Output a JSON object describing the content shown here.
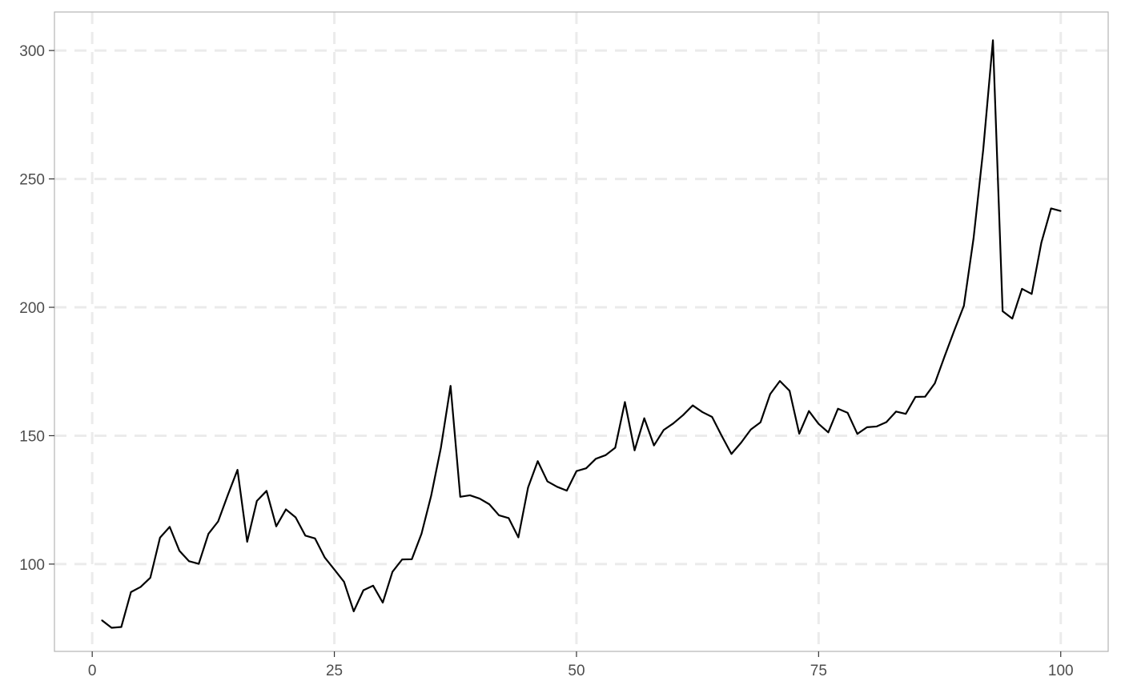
{
  "chart_data": {
    "type": "line",
    "title": "",
    "xlabel": "",
    "ylabel": "",
    "xlim": [
      -3.9,
      104.9
    ],
    "ylim": [
      66,
      315
    ],
    "x_ticks": [
      0,
      25,
      50,
      75,
      100
    ],
    "x_tick_labels": [
      "0",
      "25",
      "50",
      "75",
      "100"
    ],
    "y_ticks": [
      100,
      150,
      200,
      250,
      300
    ],
    "y_tick_labels": [
      "100",
      "150",
      "200",
      "250",
      "300"
    ],
    "grid": true,
    "grid_style": "dashed",
    "legend": "none",
    "colors": {
      "line": "#000000",
      "grid": "#ebebeb",
      "border": "#b3b3b3",
      "tick_text": "#4d4d4d",
      "tick_mark": "#333333",
      "background": "#ffffff"
    },
    "series": [
      {
        "x": [
          1,
          2,
          3,
          4,
          5,
          6,
          7,
          8,
          9,
          10,
          11,
          12,
          13,
          14,
          15,
          16,
          17,
          18,
          19,
          20,
          21,
          22,
          23,
          24,
          25,
          26,
          27,
          28,
          29,
          30,
          31,
          32,
          33,
          34,
          35,
          36,
          37,
          38,
          39,
          40,
          41,
          42,
          43,
          44,
          45,
          46,
          47,
          48,
          49,
          50,
          51,
          52,
          53,
          54,
          55,
          56,
          57,
          58,
          59,
          60,
          61,
          62,
          63,
          64,
          65,
          66,
          67,
          68,
          69,
          70,
          71,
          72,
          73,
          74,
          75,
          76,
          77,
          78,
          79,
          80,
          81,
          82,
          83,
          84,
          85,
          86,
          87,
          88,
          89,
          90,
          91,
          92,
          93,
          94,
          95,
          96,
          97,
          98,
          99,
          100
        ],
        "values": [
          78.1,
          75.2,
          75.5,
          89.1,
          91.1,
          94.7,
          110.3,
          114.5,
          105.2,
          101.1,
          100.1,
          111.8,
          116.6,
          126.9,
          136.7,
          108.7,
          124.6,
          128.5,
          114.7,
          121.3,
          118.2,
          111.1,
          110.0,
          102.6,
          97.9,
          93.1,
          81.6,
          89.8,
          91.6,
          85.0,
          97.0,
          101.8,
          101.9,
          111.8,
          126.7,
          145.3,
          169.4,
          126.2,
          126.8,
          125.5,
          123.3,
          119.0,
          117.9,
          110.4,
          129.8,
          140.1,
          132.2,
          130.1,
          128.6,
          136.2,
          137.3,
          141.0,
          142.4,
          145.3,
          163.1,
          144.3,
          156.8,
          146.2,
          152.2,
          154.8,
          158.0,
          161.8,
          159.2,
          157.3,
          149.9,
          142.9,
          147.3,
          152.4,
          155.2,
          166.2,
          171.3,
          167.5,
          150.8,
          159.6,
          154.6,
          151.3,
          160.5,
          158.9,
          150.7,
          153.3,
          153.6,
          155.3,
          159.4,
          158.5,
          165.1,
          165.2,
          170.4,
          180.8,
          190.9,
          200.6,
          226.9,
          261.5,
          304.0,
          198.5,
          195.6,
          207.2,
          205.2,
          225.2,
          238.5,
          237.5
        ]
      }
    ]
  }
}
